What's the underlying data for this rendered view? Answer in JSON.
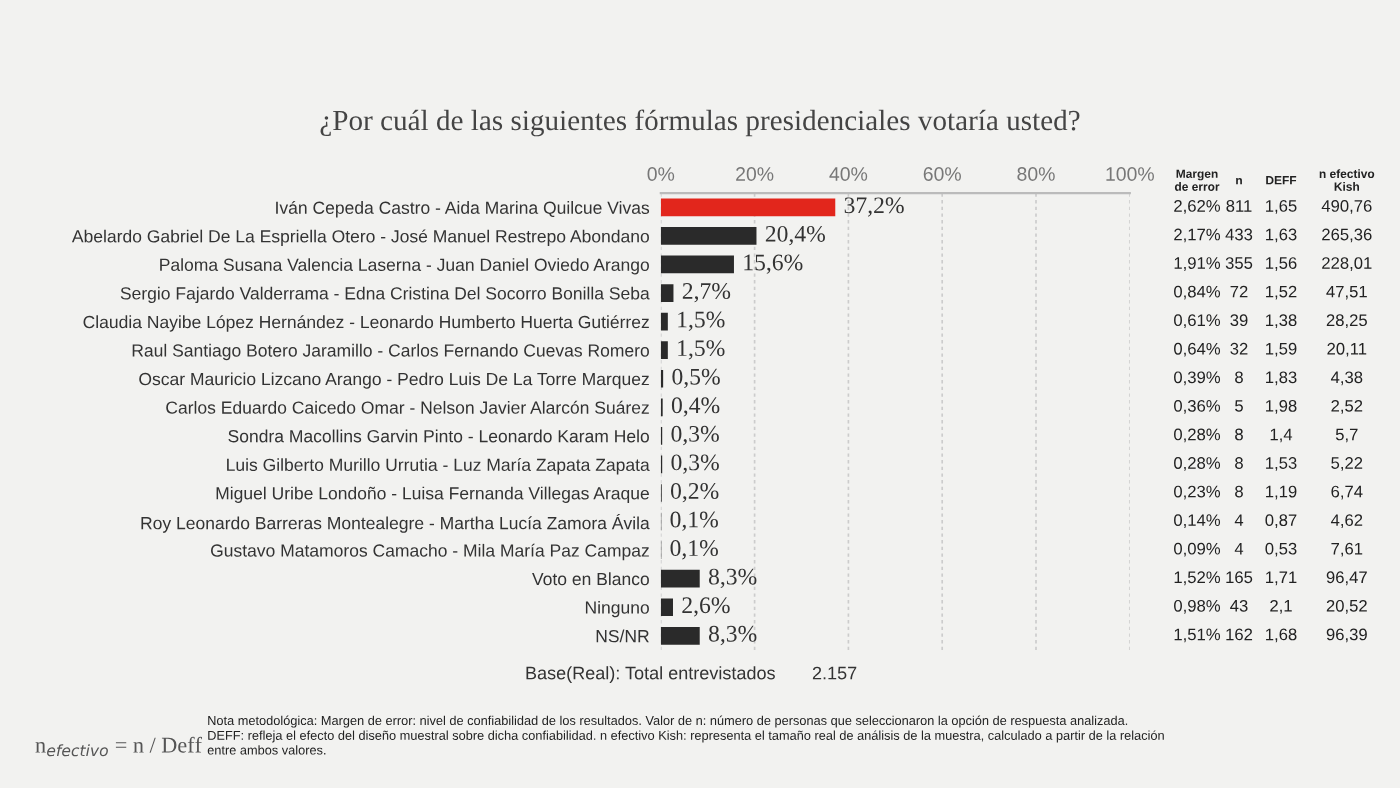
{
  "chart_data": {
    "type": "bar",
    "orientation": "horizontal",
    "title": "¿Por cuál de las siguientes fórmulas presidenciales votaría usted?",
    "categories": [
      "Iván Cepeda Castro - Aida Marina Quilcue Vivas",
      "Abelardo Gabriel De La Espriella Otero - José Manuel Restrepo Abondano",
      "Paloma Susana Valencia Laserna - Juan Daniel Oviedo Arango",
      "Sergio Fajardo Valderrama - Edna Cristina Del Socorro Bonilla Seba",
      "Claudia Nayibe López Hernández - Leonardo Humberto Huerta Gutiérrez",
      "Raul Santiago Botero Jaramillo - Carlos Fernando Cuevas Romero",
      "Oscar Mauricio Lizcano Arango - Pedro Luis De La Torre Marquez",
      "Carlos Eduardo Caicedo Omar - Nelson Javier Alarcón Suárez",
      "Sondra Macollins Garvin Pinto - Leonardo Karam Helo",
      "Luis Gilberto Murillo Urrutia - Luz María Zapata Zapata",
      "Miguel Uribe Londoño - Luisa Fernanda Villegas Araque",
      "Roy Leonardo Barreras Montealegre - Martha Lucía Zamora Ávila",
      "Gustavo Matamoros Camacho - Mila María Paz Campaz",
      "Voto en Blanco",
      "Ninguno",
      "NS/NR"
    ],
    "values": [
      37.2,
      20.4,
      15.6,
      2.7,
      1.5,
      1.5,
      0.5,
      0.4,
      0.3,
      0.3,
      0.2,
      0.1,
      0.1,
      8.3,
      2.6,
      8.3
    ],
    "value_labels": [
      "37,2%",
      "20,4%",
      "15,6%",
      "2,7%",
      "1,5%",
      "1,5%",
      "0,5%",
      "0,4%",
      "0,3%",
      "0,3%",
      "0,2%",
      "0,1%",
      "0,1%",
      "8,3%",
      "2,6%",
      "8,3%"
    ],
    "colors": [
      "#e2261c",
      "#2a2a2a",
      "#2a2a2a",
      "#2a2a2a",
      "#2a2a2a",
      "#2a2a2a",
      "#2a2a2a",
      "#2a2a2a",
      "#2a2a2a",
      "#2a2a2a",
      "#2a2a2a",
      "#2a2a2a",
      "#2a2a2a",
      "#2a2a2a",
      "#2a2a2a",
      "#2a2a2a"
    ],
    "xlim": [
      0,
      100
    ],
    "xticks": [
      {
        "value": 0,
        "label": "0%"
      },
      {
        "value": 20,
        "label": "20%"
      },
      {
        "value": 40,
        "label": "40%"
      },
      {
        "value": 60,
        "label": "60%"
      },
      {
        "value": 80,
        "label": "80%"
      },
      {
        "value": 100,
        "label": "100%"
      }
    ],
    "grid": "x",
    "annotations": [
      "Base(Real): Total entrevistados",
      "2.157",
      "n$_{efectivo}$ = n / Deff",
      "Nota metodológica: Margen de error: nivel de confiabilidad de los resultados. Valor de n: número de personas que seleccionaron la opción de respuesta analizada.\nDEFF: refleja el efecto del diseño muestral sobre dicha confiabilidad. n efectivo Kish: representa el tamaño real de análisis de la muestra, calculado a partir de la relación\nentre ambos valores.",
      "Margen\nde error",
      "n",
      "DEFF",
      "n efectivo\nKish",
      "2,62%",
      "811",
      "1,65",
      "490,76",
      "2,17%",
      "433",
      "1,63",
      "265,36",
      "1,91%",
      "355",
      "1,56",
      "228,01",
      "0,84%",
      "72",
      "1,52",
      "47,51",
      "0,61%",
      "39",
      "1,38",
      "28,25",
      "0,64%",
      "32",
      "1,59",
      "20,11",
      "0,39%",
      "8",
      "1,83",
      "4,38",
      "0,36%",
      "5",
      "1,98",
      "2,52",
      "0,28%",
      "8",
      "1,4",
      "5,7",
      "0,28%",
      "8",
      "1,53",
      "5,22",
      "0,23%",
      "8",
      "1,19",
      "6,74",
      "0,14%",
      "4",
      "0,87",
      "4,62",
      "0,09%",
      "4",
      "0,53",
      "7,61",
      "1,52%",
      "165",
      "1,71",
      "96,47",
      "0,98%",
      "43",
      "2,1",
      "20,52",
      "1,51%",
      "162",
      "1,68",
      "96,39"
    ]
  }
}
